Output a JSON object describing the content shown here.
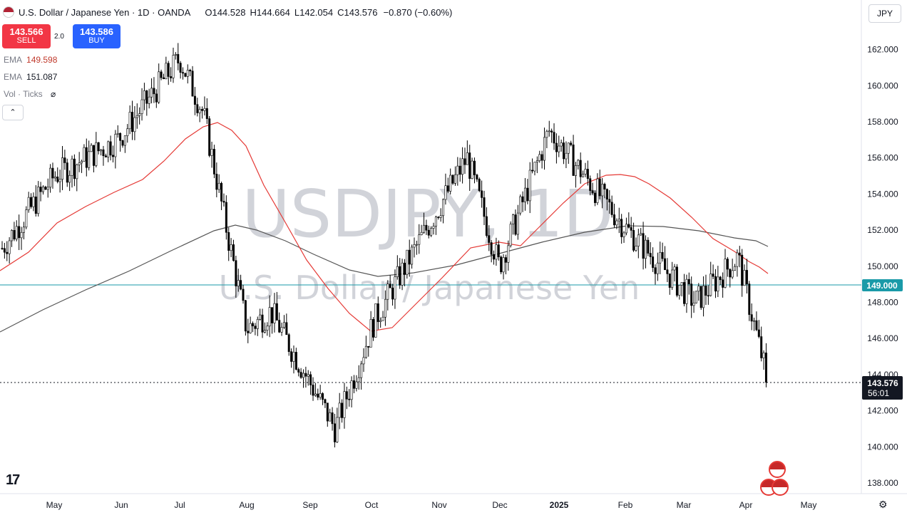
{
  "header": {
    "title": "U.S. Dollar / Japanese Yen · 1D · OANDA",
    "open_label": "O",
    "open": "144.528",
    "high_label": "H",
    "high": "144.664",
    "low_label": "L",
    "low": "142.054",
    "close_label": "C",
    "close": "143.576",
    "change": "−0.870 (−0.60%)"
  },
  "trade": {
    "sell_price": "143.566",
    "sell_label": "SELL",
    "buy_price": "143.586",
    "buy_label": "BUY",
    "spread": "2.0"
  },
  "indicators": {
    "ema1_label": "EMA",
    "ema1_value": "149.598",
    "ema2_label": "EMA",
    "ema2_value": "151.087",
    "vol_label": "Vol · Ticks"
  },
  "currency_button": "JPY",
  "watermark": {
    "symbol": "USDJPY, 1D",
    "name": "U.S. Dollar / Japanese Yen"
  },
  "price_labels": {
    "line": "149.000",
    "last": "143.576",
    "countdown": "56:01"
  },
  "colors": {
    "up": "#ffffff",
    "down": "#000000",
    "ema_fast": "#e53935",
    "ema_slow": "#555555",
    "hline": "#1a9aa8",
    "label_bg": "#131722",
    "sell": "#f23645",
    "buy": "#2962ff"
  },
  "chart_data": {
    "type": "candlestick",
    "y_axis": {
      "min": 138,
      "max": 162,
      "ticks": [
        138,
        140,
        142,
        144,
        146,
        148,
        150,
        152,
        154,
        156,
        158,
        160,
        162
      ],
      "side": "right"
    },
    "x_axis_labels": [
      "May",
      "Jun",
      "Jul",
      "Aug",
      "Sep",
      "Oct",
      "Nov",
      "Dec",
      "2025",
      "Feb",
      "Mar",
      "Apr",
      "May"
    ],
    "horizontal_line": 149.0,
    "last_price": 143.576,
    "series": [
      {
        "name": "EMA",
        "value": 149.598
      },
      {
        "name": "EMA",
        "value": 151.087
      }
    ],
    "close_path": [
      [
        "Apr",
        151.0
      ],
      [
        "May",
        155.0
      ],
      [
        "Jun",
        157.0
      ],
      [
        "Jul",
        161.5
      ],
      [
        "Jul",
        158.5
      ],
      [
        "Aug",
        146.5
      ],
      [
        "Aug",
        147.5
      ],
      [
        "Sep",
        141.0
      ],
      [
        "Oct",
        147.0
      ],
      [
        "Nov",
        156.0
      ],
      [
        "Dec",
        150.0
      ],
      [
        "2025",
        157.5
      ],
      [
        "Feb",
        152.0
      ],
      [
        "Mar",
        148.0
      ],
      [
        "Apr",
        150.5
      ],
      [
        "Apr",
        143.576
      ]
    ],
    "grid": false,
    "legend": "top-left"
  }
}
